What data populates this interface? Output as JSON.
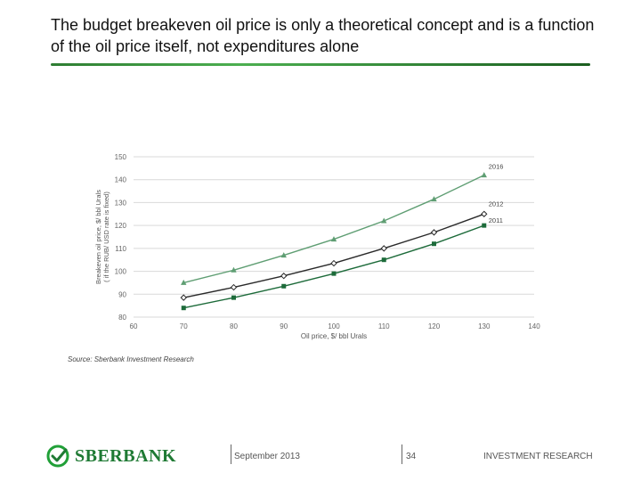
{
  "header": {
    "title": "The budget breakeven oil price is only a theoretical concept and is a function of the oil price itself, not expenditures alone"
  },
  "colors": {
    "accent_green": "#2e7d32",
    "series_2016": "#5f9e73",
    "series_2012": "#2a2a2a",
    "series_2011": "#1d6b3a"
  },
  "chart_data": {
    "type": "line",
    "xlabel": "Oil price, $/ bbl Urals",
    "ylabel_line1": "Breakeven oil price, $/ bbl Urals",
    "ylabel_line2": "( if the RUB/ USD rate is fixed)",
    "xlim": [
      60,
      140
    ],
    "ylim": [
      80,
      150
    ],
    "xticks": [
      60,
      70,
      80,
      90,
      100,
      110,
      120,
      130,
      140
    ],
    "yticks": [
      80,
      90,
      100,
      110,
      120,
      130,
      140,
      150
    ],
    "grid": true,
    "x": [
      70,
      80,
      90,
      100,
      110,
      120,
      130
    ],
    "series": [
      {
        "name": "2016",
        "marker": "triangle",
        "values": [
          95,
          100.5,
          107,
          114,
          122,
          131.5,
          142
        ]
      },
      {
        "name": "2012",
        "marker": "diamond",
        "values": [
          88.5,
          93,
          98,
          103.5,
          110,
          117,
          125
        ]
      },
      {
        "name": "2011",
        "marker": "square",
        "values": [
          84,
          88.5,
          93.5,
          99,
          105,
          112,
          120
        ]
      }
    ]
  },
  "source": "Source: Sberbank Investment Research",
  "footer": {
    "logo_text": "SBERBANK",
    "date": "September 2013",
    "page_number": "34",
    "section": "INVESTMENT RESEARCH"
  }
}
